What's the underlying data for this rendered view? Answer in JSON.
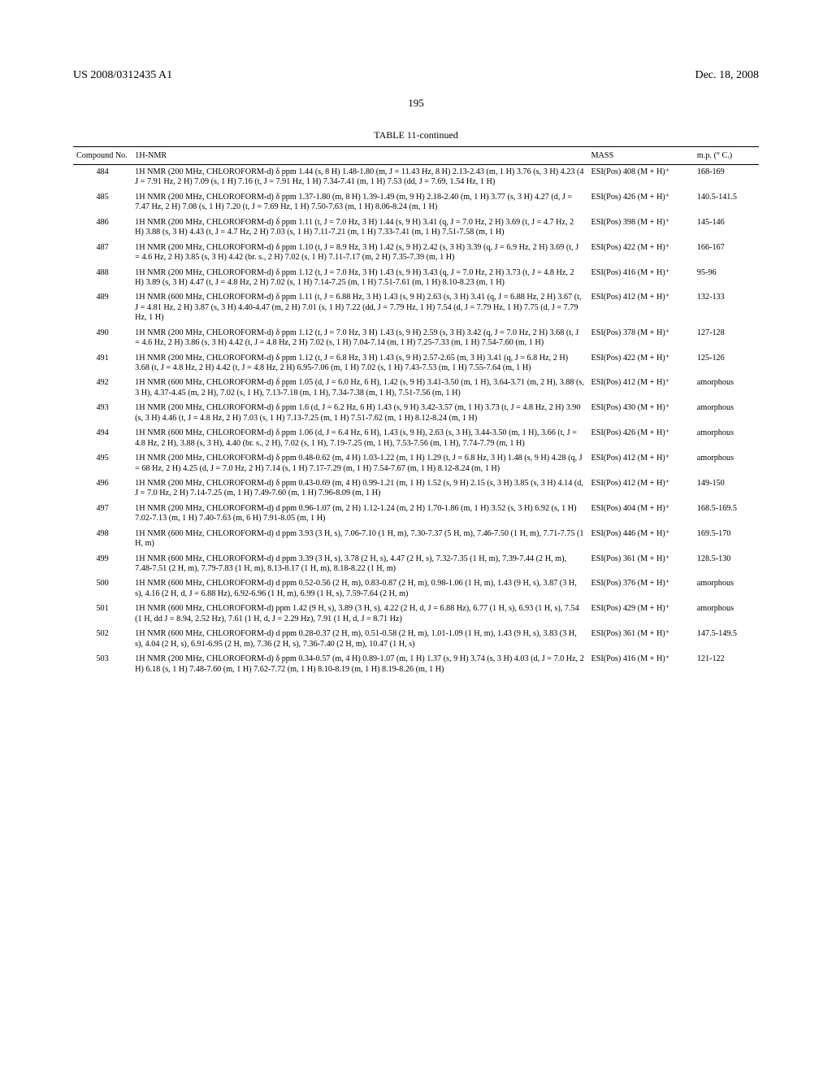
{
  "header": {
    "left": "US 2008/0312435 A1",
    "right": "Dec. 18, 2008"
  },
  "page_number": "195",
  "table": {
    "title": "TABLE 11-continued",
    "columns": [
      "Compound No.",
      "1H-NMR",
      "MASS",
      "m.p. (° C.)"
    ],
    "rows": [
      {
        "compound": "484",
        "nmr": "1H NMR (200 MHz, CHLOROFORM-d) δ ppm 1.44 (s, 8 H) 1.48-1.80 (m, J = 11.43 Hz, 8 H) 2.13-2.43 (m, 1 H) 3.76 (s, 3 H) 4.23 (4 J = 7.91 Hz, 2 H) 7.09 (s, 1 H) 7.16 (t, J = 7.91 Hz, 1 H) 7.34-7.41 (m, 1 H) 7.53 (dd, J = 7.69, 1.54 Hz, 1 H)",
        "mass": "ESI(Pos) 408 (M + H)⁺",
        "mp": "168-169"
      },
      {
        "compound": "485",
        "nmr": "1H NMR (200 MHz, CHLOROFORM-d) δ ppm 1.37-1.80 (m, 8 H) 1.39-1.49 (m, 9 H) 2.18-2.40 (m, 1 H) 3.77 (s, 3 H) 4.27 (d, J = 7.47 Hz, 2 H) 7.08 (s, 1 H) 7.20 (t, J = 7.69 Hz, 1 H) 7.50-7.63 (m, 1 H) 8.06-8.24 (m, 1 H)",
        "mass": "ESI(Pos) 426 (M + H)⁺",
        "mp": "140.5-141.5"
      },
      {
        "compound": "486",
        "nmr": "1H NMR (200 MHz, CHLOROFORM-d) δ ppm 1.11 (t, J = 7.0 Hz, 3 H) 1.44 (s, 9 H) 3.41 (q, J = 7.0 Hz, 2 H) 3.69 (t, J = 4.7 Hz, 2 H) 3.88 (s, 3 H) 4.43 (t, J = 4.7 Hz, 2 H) 7.03 (s, 1 H) 7.11-7.21 (m, 1 H) 7.33-7.41 (m, 1 H) 7.51-7.58 (m, 1 H)",
        "mass": "ESI(Pos) 398 (M + H)⁺",
        "mp": "145-146"
      },
      {
        "compound": "487",
        "nmr": "1H NMR (200 MHz, CHLOROFORM-d) δ ppm 1.10 (t, J = 8.9 Hz, 3 H) 1.42 (s, 9 H) 2.42 (s, 3 H) 3.39 (q, J = 6.9 Hz, 2 H) 3.69 (t, J = 4.6 Hz, 2 H) 3.85 (s, 3 H) 4.42 (br. s., 2 H) 7.02 (s, 1 H) 7.11-7.17 (m, 2 H) 7.35-7.39 (m, 1 H)",
        "mass": "ESI(Pos) 422 (M + H)⁺",
        "mp": "166-167"
      },
      {
        "compound": "488",
        "nmr": "1H NMR (200 MHz, CHLOROFORM-d) δ ppm 1.12 (t, J = 7.0 Hz, 3 H) 1.43 (s, 9 H) 3.43 (q, J = 7.0 Hz, 2 H) 3.73 (t, J = 4.8 Hz, 2 H) 3.89 (s, 3 H) 4.47 (t, J = 4.8 Hz, 2 H) 7.02 (s, 1 H) 7.14-7.25 (m, 1 H) 7.51-7.61 (m, 1 H) 8.10-8.23 (m, 1 H)",
        "mass": "ESI(Pos) 416 (M + H)⁺",
        "mp": "95-96"
      },
      {
        "compound": "489",
        "nmr": "1H NMR (600 MHz, CHLOROFORM-d) δ ppm 1.11 (t, J = 6.88 Hz, 3 H) 1.43 (s, 9 H) 2.63 (s, 3 H) 3.41 (q, J = 6.88 Hz, 2 H) 3.67 (t, J = 4.81 Hz, 2 H) 3.87 (s, 3 H) 4.40-4.47 (m, 2 H) 7.01 (s, 1 H) 7.22 (dd, J = 7.79 Hz, 1 H) 7.54 (d, J = 7.79 Hz, 1 H) 7.75 (d, J = 7.79 Hz, 1 H)",
        "mass": "ESI(Pos) 412 (M + H)⁺",
        "mp": "132-133"
      },
      {
        "compound": "490",
        "nmr": "1H NMR (200 MHz, CHLOROFORM-d) δ ppm 1.12 (t, J = 7.0 Hz, 3 H) 1.43 (s, 9 H) 2.59 (s, 3 H) 3.42 (q, J = 7.0 Hz, 2 H) 3.68 (t, J = 4.6 Hz, 2 H) 3.86 (s, 3 H) 4.42 (t, J = 4.8 Hz, 2 H) 7.02 (s, 1 H) 7.04-7.14 (m, 1 H) 7.25-7.33 (m, 1 H) 7.54-7.60 (m, 1 H)",
        "mass": "ESI(Pos) 378 (M + H)⁺",
        "mp": "127-128"
      },
      {
        "compound": "491",
        "nmr": "1H NMR (200 MHz, CHLOROFORM-d) δ ppm 1.12 (t, J = 6.8 Hz, 3 H) 1.43 (s, 9 H) 2.57-2.65 (m, 3 H) 3.41 (q, J = 6.8 Hz, 2 H) 3.68 (t, J = 4.8 Hz, 2 H) 4.42 (t, J = 4.8 Hz, 2 H) 6.95-7.06 (m, 1 H) 7.02 (s, 1 H) 7.43-7.53 (m, 1 H) 7.55-7.64 (m, 1 H)",
        "mass": "ESI(Pos) 422 (M + H)⁺",
        "mp": "125-126"
      },
      {
        "compound": "492",
        "nmr": "1H NMR (600 MHz, CHLOROFORM-d) δ ppm 1.05 (d, J = 6.0 Hz, 6 H), 1.42 (s, 9 H) 3.41-3.50 (m, 1 H), 3.64-3.71 (m, 2 H), 3.88 (s, 3 H), 4.37-4.45 (m, 2 H), 7.02 (s, 1 H), 7.13-7.18 (m, 1 H), 7.34-7.38 (m, 1 H), 7.51-7.56 (m, 1 H)",
        "mass": "ESI(Pos) 412 (M + H)⁺",
        "mp": "amorphous"
      },
      {
        "compound": "493",
        "nmr": "1H NMR (200 MHz, CHLOROFORM-d) δ ppm 1.6 (d, J = 6.2 Hz, 6 H) 1.43 (s, 9 H) 3.42-3.57 (m, 1 H) 3.73 (t, J = 4.8 Hz, 2 H) 3.90 (s, 3 H) 4.46 (t, J = 4.8 Hz, 2 H) 7.03 (s, 1 H) 7.13-7.25 (m, 1 H) 7.51-7.62 (m, 1 H) 8.12-8.24 (m, 1 H)",
        "mass": "ESI(Pos) 430 (M + H)⁺",
        "mp": "amorphous"
      },
      {
        "compound": "494",
        "nmr": "1H NMR (600 MHz, CHLOROFORM-d) δ ppm 1.06 (d, J = 6.4 Hz, 6 H), 1.43 (s, 9 H), 2.63 (s, 3 H), 3.44-3.50 (m, 1 H), 3.66 (t, J = 4.8 Hz, 2 H), 3.88 (s, 3 H), 4.40 (br. s., 2 H), 7.02 (s, 1 H), 7.19-7.25 (m, 1 H), 7.53-7.56 (m, 1 H), 7.74-7.79 (m, 1 H)",
        "mass": "ESI(Pos) 426 (M + H)⁺",
        "mp": "amorphous"
      },
      {
        "compound": "495",
        "nmr": "1H NMR (200 MHz, CHLOROFORM-d) δ ppm 0.48-0.62 (m, 4 H) 1.03-1.22 (m, 1 H) 1.29 (t, J = 6.8 Hz, 3 H) 1.48 (s, 9 H) 4.28 (q, J = 68 Hz, 2 H) 4.25 (d, J = 7.0 Hz, 2 H) 7.14 (s, 1 H) 7.17-7.29 (m, 1 H) 7.54-7.67 (m, 1 H) 8.12-8.24 (m, 1 H)",
        "mass": "ESI(Pos) 412 (M + H)⁺",
        "mp": "amorphous"
      },
      {
        "compound": "496",
        "nmr": "1H NMR (200 MHz, CHLOROFORM-d) δ ppm 0.43-0.69 (m, 4 H) 0.99-1.21 (m, 1 H) 1.52 (s, 9 H) 2.15 (s, 3 H) 3.85 (s, 3 H) 4.14 (d, J = 7.0 Hz, 2 H) 7.14-7.25 (m, 1 H) 7.49-7.60 (m, 1 H) 7.96-8.09 (m, 1 H)",
        "mass": "ESI(Pos) 412 (M + H)⁺",
        "mp": "149-150"
      },
      {
        "compound": "497",
        "nmr": "1H NMR (200 MHz, CHLOROFORM-d) d ppm 0.96-1.07 (m, 2 H) 1.12-1.24 (m, 2 H) 1.70-1.86 (m, 1 H) 3.52 (s, 3 H) 6.92 (s, 1 H) 7.02-7.13 (m, 1 H) 7.40-7.63 (m, 6 H) 7.91-8.05 (m, 1 H)",
        "mass": "ESI(Pos) 404 (M + H)⁺",
        "mp": "168.5-169.5"
      },
      {
        "compound": "498",
        "nmr": "1H NMR (600 MHz, CHLOROFORM-d) d ppm 3.93 (3 H, s), 7.06-7.10 (1 H, m), 7.30-7.37 (5 H, m), 7.46-7.50 (1 H, m), 7.71-7.75 (1 H, m)",
        "mass": "ESI(Pos) 446 (M + H)⁺",
        "mp": "169.5-170"
      },
      {
        "compound": "499",
        "nmr": "1H NMR (600 MHz, CHLOROFORM-d) d ppm 3.39 (3 H, s), 3.78 (2 H, s), 4.47 (2 H, s), 7.32-7.35 (1 H, m), 7.39-7.44 (2 H, m), 7.48-7.51 (2 H, m), 7.79-7.83 (1 H, m), 8.13-8.17 (1 H, m), 8.18-8.22 (1 H, m)",
        "mass": "ESI(Pos) 361 (M + H)⁺",
        "mp": "128.5-130"
      },
      {
        "compound": "500",
        "nmr": "1H NMR (600 MHz, CHLOROFORM-d) d ppm 0.52-0.56 (2 H, m), 0.83-0.87 (2 H, m), 0.98-1.06 (1 H, m), 1.43 (9 H, s), 3.87 (3 H, s), 4.16 (2 H, d, J = 6.88 Hz), 6.92-6.96 (1 H, m), 6.99 (1 H, s), 7.59-7.64 (2 H, m)",
        "mass": "ESI(Pos) 376 (M + H)⁺",
        "mp": "amorphous"
      },
      {
        "compound": "501",
        "nmr": "1H NMR (600 MHz, CHLOROFORM-d) ppm 1.42 (9 H, s), 3.89 (3 H, s), 4.22 (2 H, d, J = 6.88 Hz), 6.77 (1 H, s), 6.93 (1 H, s), 7.54 (1 H, dd J = 8.94, 2.52 Hz), 7.61 (1 H, d, J = 2.29 Hz), 7.91 (1 H, d, J = 8.71 Hz)",
        "mass": "ESI(Pos) 429 (M + H)⁺",
        "mp": "amorphous"
      },
      {
        "compound": "502",
        "nmr": "1H NMR (600 MHz, CHLOROFORM-d) d ppm 0.28-0.37 (2 H, m), 0.51-0.58 (2 H, m), 1.01-1.09 (1 H, m), 1.43 (9 H, s), 3.83 (3 H, s), 4.04 (2 H, s), 6.91-6.95 (2 H, m), 7.36 (2 H, s), 7.36-7.40 (2 H, m), 10.47 (1 H, s)",
        "mass": "ESI(Pos) 361 (M + H)⁺",
        "mp": "147.5-149.5"
      },
      {
        "compound": "503",
        "nmr": "1H NMR (200 MHz, CHLOROFORM-d) δ ppm 0.34-0.57 (m, 4 H) 0.89-1.07 (m, 1 H) 1.37 (s, 9 H) 3.74 (s, 3 H) 4.03 (d, J = 7.0 Hz, 2 H) 6.18 (s, 1 H) 7.48-7.60 (m, 1 H) 7.62-7.72 (m, 1 H) 8.10-8.19 (m, 1 H) 8.19-8.26 (m, 1 H)",
        "mass": "ESI(Pos) 416 (M + H)⁺",
        "mp": "121-122"
      }
    ]
  }
}
